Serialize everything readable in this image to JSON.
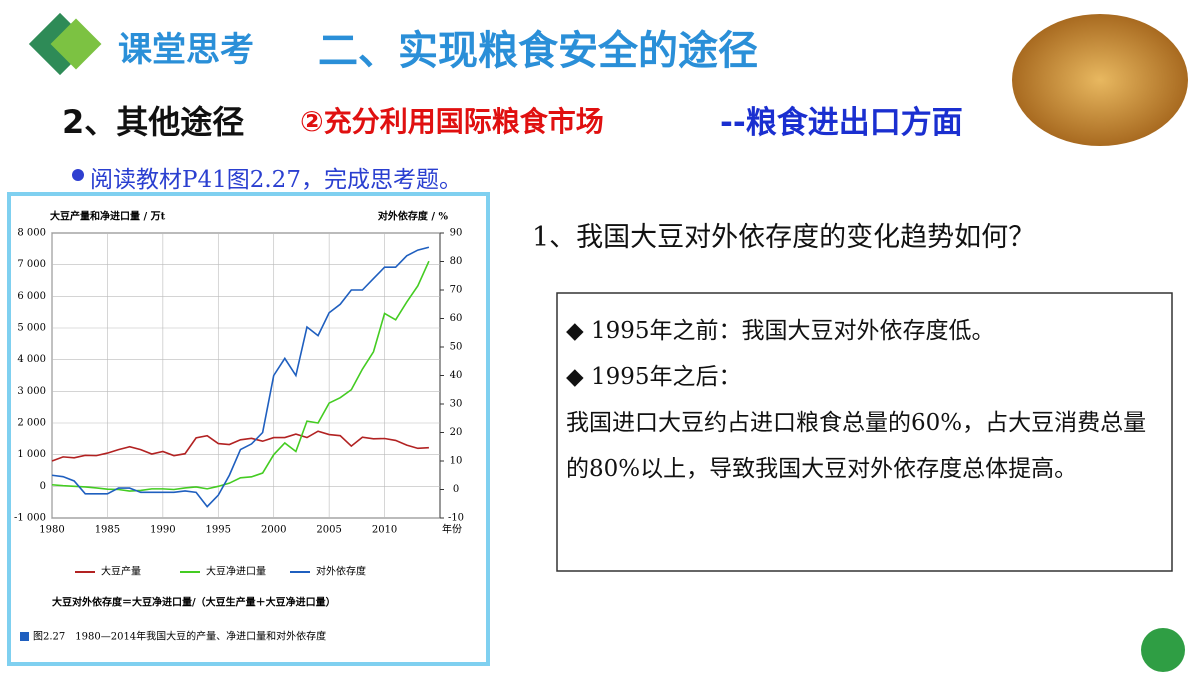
{
  "slide": {
    "tag": "课堂思考",
    "title": "二、实现粮食安全的途径",
    "subtitle_a": "2、其他途径",
    "subtitle_b": "②充分利用国际粮食市场",
    "subtitle_c": "--粮食进出口方面",
    "instruction": "阅读教材P41图2.27，完成思考题。",
    "question": "1、我国大豆对外依存度的变化趋势如何？",
    "answer": [
      "◆ 1995年之前：我国大豆对外依存度低。",
      "◆ 1995年之后：",
      "我国进口大豆约占进口粮食总量的60%，占大豆消费总量的80%以上，导致我国大豆对外依存度总体提高。"
    ],
    "formula": "大豆对外依存度＝大豆净进口量/（大豆生产量＋大豆净进口量）",
    "caption": "图2.27　1980—2014年我国大豆的产量、净进口量和对外依存度"
  },
  "chart_data": {
    "type": "line",
    "ylabel": "大豆产量和净进口量 / 万t",
    "y2label": "对外依存度 / %",
    "xlabel": "年份",
    "x": [
      1980,
      1981,
      1982,
      1983,
      1984,
      1985,
      1986,
      1987,
      1988,
      1989,
      1990,
      1991,
      1992,
      1993,
      1994,
      1995,
      1996,
      1997,
      1998,
      1999,
      2000,
      2001,
      2002,
      2003,
      2004,
      2005,
      2006,
      2007,
      2008,
      2009,
      2010,
      2011,
      2012,
      2013,
      2014
    ],
    "xlim": [
      1980,
      2015
    ],
    "xticks": [
      1980,
      1985,
      1990,
      1995,
      2000,
      2005,
      2010
    ],
    "ylim": [
      -1000,
      8000
    ],
    "yticks": [
      {
        "value": -1000,
        "label": "-1 000"
      },
      0,
      {
        "value": 1000,
        "label": "1 000"
      },
      {
        "value": 2000,
        "label": "2 000"
      },
      {
        "value": 3000,
        "label": "3 000"
      },
      {
        "value": 4000,
        "label": "4 000"
      },
      {
        "value": 5000,
        "label": "5 000"
      },
      {
        "value": 6000,
        "label": "6 000"
      },
      {
        "value": 7000,
        "label": "7 000"
      },
      {
        "value": 8000,
        "label": "8 000"
      }
    ],
    "y2lim": [
      -10,
      90
    ],
    "y2ticks": [
      -10,
      0,
      10,
      20,
      30,
      40,
      50,
      60,
      70,
      80,
      90
    ],
    "series": [
      {
        "name": "大豆产量",
        "color": "#b22222",
        "values": [
          800,
          930,
          900,
          980,
          970,
          1050,
          1160,
          1250,
          1160,
          1020,
          1100,
          970,
          1030,
          1530,
          1600,
          1350,
          1320,
          1470,
          1515,
          1425,
          1540,
          1540,
          1650,
          1540,
          1740,
          1635,
          1600,
          1270,
          1550,
          1500,
          1510,
          1450,
          1300,
          1200,
          1220
        ]
      },
      {
        "name": "大豆净进口量",
        "color": "#44cc22",
        "values": [
          50,
          20,
          0,
          -20,
          -50,
          -90,
          -100,
          -150,
          -130,
          -80,
          -80,
          -100,
          -50,
          -20,
          -80,
          0,
          100,
          270,
          300,
          420,
          1000,
          1370,
          1100,
          2060,
          2000,
          2630,
          2800,
          3050,
          3700,
          4250,
          5460,
          5260,
          5820,
          6330,
          7110
        ]
      },
      {
        "name": "对外依存度",
        "color": "#1f5fbf",
        "axis": "y2",
        "values": [
          5,
          4.5,
          3,
          -1.5,
          -1.5,
          -1.5,
          0.5,
          0.5,
          -1,
          -1,
          -1,
          -1,
          -0.5,
          -1,
          -6,
          -2,
          5,
          14,
          16,
          20,
          40,
          46,
          40,
          57,
          54,
          62,
          65,
          70,
          70,
          74,
          78,
          78,
          82,
          84,
          85
        ]
      }
    ]
  }
}
